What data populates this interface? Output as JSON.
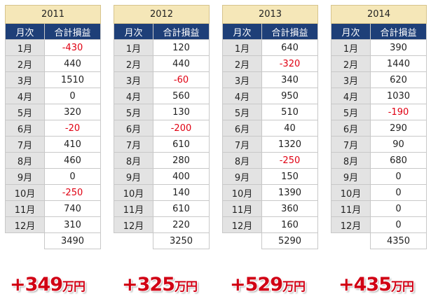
{
  "columns": {
    "month_header": "月次",
    "profit_header": "合計損益"
  },
  "years": [
    {
      "year": "2011",
      "months": [
        "1月",
        "2月",
        "3月",
        "4月",
        "5月",
        "6月",
        "7月",
        "8月",
        "9月",
        "10月",
        "11月",
        "12月"
      ],
      "values": [
        "-430",
        "440",
        "1510",
        "0",
        "320",
        "-20",
        "410",
        "460",
        "0",
        "-250",
        "740",
        "310"
      ],
      "total": "3490",
      "result": "+349万円"
    },
    {
      "year": "2012",
      "months": [
        "1月",
        "2月",
        "3月",
        "4月",
        "5月",
        "6月",
        "7月",
        "8月",
        "9月",
        "10月",
        "11月",
        "12月"
      ],
      "values": [
        "120",
        "440",
        "-60",
        "560",
        "130",
        "-200",
        "610",
        "280",
        "400",
        "140",
        "610",
        "220"
      ],
      "total": "3250",
      "result": "+325万円"
    },
    {
      "year": "2013",
      "months": [
        "1月",
        "2月",
        "3月",
        "4月",
        "5月",
        "6月",
        "7月",
        "8月",
        "9月",
        "10月",
        "11月",
        "12月"
      ],
      "values": [
        "640",
        "-320",
        "340",
        "950",
        "510",
        "40",
        "1320",
        "-250",
        "150",
        "1390",
        "360",
        "160"
      ],
      "total": "5290",
      "result": "+529万円"
    },
    {
      "year": "2014",
      "months": [
        "1月",
        "2月",
        "3月",
        "4月",
        "5月",
        "6月",
        "7月",
        "8月",
        "9月",
        "10月",
        "11月",
        "12月"
      ],
      "values": [
        "390",
        "1440",
        "620",
        "1030",
        "-190",
        "290",
        "90",
        "680",
        "0",
        "0",
        "0",
        "0"
      ],
      "total": "4350",
      "result": "+435万円"
    }
  ],
  "colors": {
    "negative": "#e00012",
    "header_navy": "#1e3f78",
    "year_header": "#f5e7b8",
    "month_cell": "#e3e3e3",
    "result_red": "#d10014"
  }
}
